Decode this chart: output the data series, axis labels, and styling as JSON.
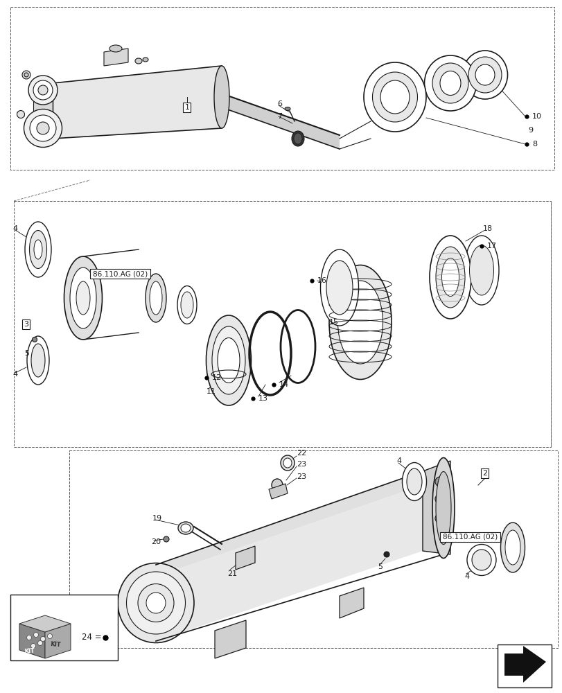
{
  "bg_color": "#ffffff",
  "lc": "#1a1a1a",
  "fig_width": 8.12,
  "fig_height": 10.0,
  "dpi": 100,
  "ref_label": "86.110.AG (02)"
}
